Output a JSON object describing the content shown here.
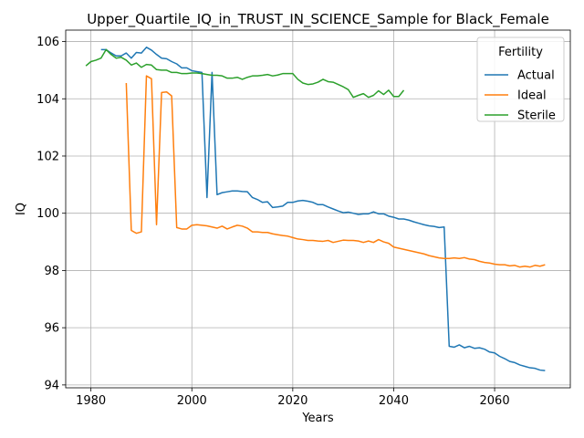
{
  "chart_data": {
    "type": "line",
    "title": "Upper_Quartile_IQ_in_TRUST_IN_SCIENCE_Sample for Black_Female",
    "xlabel": "Years",
    "ylabel": "IQ",
    "xlim": [
      1975,
      2075
    ],
    "ylim": [
      93.9,
      106.4
    ],
    "xticks": [
      1980,
      2000,
      2020,
      2040,
      2060
    ],
    "yticks": [
      94,
      96,
      98,
      100,
      102,
      104,
      106
    ],
    "grid": true,
    "legend": {
      "title": "Fertility",
      "placement": "top-right"
    },
    "series": [
      {
        "name": "Actual",
        "color": "#1f77b4",
        "x": [
          1982,
          1983,
          1984,
          1985,
          1986,
          1987,
          1988,
          1989,
          1990,
          1991,
          1992,
          1993,
          1994,
          1995,
          1996,
          1997,
          1998,
          1999,
          2000,
          2001,
          2002,
          2003,
          2004,
          2005,
          2006,
          2007,
          2008,
          2009,
          2010,
          2011,
          2012,
          2013,
          2014,
          2015,
          2016,
          2017,
          2018,
          2019,
          2020,
          2021,
          2022,
          2023,
          2024,
          2025,
          2026,
          2027,
          2028,
          2029,
          2030,
          2031,
          2032,
          2033,
          2034,
          2035,
          2036,
          2037,
          2038,
          2039,
          2040,
          2041,
          2042,
          2043,
          2044,
          2045,
          2046,
          2047,
          2048,
          2049,
          2050,
          2051,
          2052,
          2053,
          2054,
          2055,
          2056,
          2057,
          2058,
          2059,
          2060,
          2061,
          2062,
          2063,
          2064,
          2065,
          2066,
          2067,
          2068,
          2069,
          2070
        ],
        "y": [
          105.72,
          105.72,
          105.6,
          105.5,
          105.5,
          105.6,
          105.42,
          105.62,
          105.6,
          105.8,
          105.7,
          105.55,
          105.42,
          105.4,
          105.3,
          105.22,
          105.08,
          105.08,
          104.98,
          104.95,
          104.92,
          100.55,
          104.92,
          100.65,
          100.72,
          100.75,
          100.78,
          100.78,
          100.76,
          100.75,
          100.55,
          100.48,
          100.38,
          100.4,
          100.2,
          100.22,
          100.25,
          100.38,
          100.38,
          100.43,
          100.45,
          100.42,
          100.38,
          100.3,
          100.3,
          100.22,
          100.15,
          100.08,
          100.02,
          100.04,
          100.0,
          99.96,
          99.98,
          99.98,
          100.05,
          99.98,
          99.98,
          99.9,
          99.86,
          99.8,
          99.8,
          99.76,
          99.7,
          99.65,
          99.6,
          99.56,
          99.54,
          99.5,
          99.52,
          95.35,
          95.32,
          95.4,
          95.3,
          95.35,
          95.28,
          95.3,
          95.25,
          95.15,
          95.12,
          95.0,
          94.92,
          94.82,
          94.78,
          94.7,
          94.65,
          94.6,
          94.58,
          94.52,
          94.5
        ]
      },
      {
        "name": "Ideal",
        "color": "#ff7f0e",
        "x": [
          1987,
          1988,
          1989,
          1990,
          1991,
          1992,
          1993,
          1994,
          1995,
          1996,
          1997,
          1998,
          1999,
          2000,
          2001,
          2002,
          2003,
          2004,
          2005,
          2006,
          2007,
          2008,
          2009,
          2010,
          2011,
          2012,
          2013,
          2014,
          2015,
          2016,
          2017,
          2018,
          2019,
          2020,
          2021,
          2022,
          2023,
          2024,
          2025,
          2026,
          2027,
          2028,
          2029,
          2030,
          2031,
          2032,
          2033,
          2034,
          2035,
          2036,
          2037,
          2038,
          2039,
          2040,
          2041,
          2042,
          2043,
          2044,
          2045,
          2046,
          2047,
          2048,
          2049,
          2050,
          2051,
          2052,
          2053,
          2054,
          2055,
          2056,
          2057,
          2058,
          2059,
          2060,
          2061,
          2062,
          2063,
          2064,
          2065,
          2066,
          2067,
          2068,
          2069,
          2070
        ],
        "y": [
          104.55,
          99.4,
          99.3,
          99.35,
          104.8,
          104.7,
          99.6,
          104.22,
          104.24,
          104.1,
          99.5,
          99.45,
          99.45,
          99.58,
          99.6,
          99.58,
          99.56,
          99.52,
          99.48,
          99.55,
          99.45,
          99.52,
          99.58,
          99.55,
          99.48,
          99.35,
          99.35,
          99.33,
          99.33,
          99.28,
          99.25,
          99.22,
          99.2,
          99.15,
          99.1,
          99.08,
          99.05,
          99.05,
          99.03,
          99.02,
          99.05,
          98.98,
          99.02,
          99.06,
          99.05,
          99.05,
          99.03,
          98.98,
          99.03,
          98.98,
          99.08,
          99.0,
          98.95,
          98.82,
          98.78,
          98.74,
          98.7,
          98.66,
          98.62,
          98.58,
          98.52,
          98.48,
          98.44,
          98.42,
          98.42,
          98.44,
          98.42,
          98.45,
          98.4,
          98.38,
          98.32,
          98.28,
          98.26,
          98.22,
          98.2,
          98.2,
          98.16,
          98.18,
          98.12,
          98.15,
          98.12,
          98.18,
          98.15,
          98.2
        ]
      },
      {
        "name": "Sterile",
        "color": "#2ca02c",
        "x": [
          1979,
          1980,
          1981,
          1982,
          1983,
          1984,
          1985,
          1986,
          1987,
          1988,
          1989,
          1990,
          1991,
          1992,
          1993,
          1994,
          1995,
          1996,
          1997,
          1998,
          1999,
          2000,
          2001,
          2002,
          2003,
          2004,
          2005,
          2006,
          2007,
          2008,
          2009,
          2010,
          2011,
          2012,
          2013,
          2014,
          2015,
          2016,
          2017,
          2018,
          2019,
          2020,
          2021,
          2022,
          2023,
          2024,
          2025,
          2026,
          2027,
          2028,
          2029,
          2030,
          2031,
          2032,
          2033,
          2034,
          2035,
          2036,
          2037,
          2038,
          2039,
          2040,
          2041,
          2042
        ],
        "y": [
          105.15,
          105.3,
          105.35,
          105.42,
          105.72,
          105.55,
          105.42,
          105.45,
          105.35,
          105.18,
          105.25,
          105.1,
          105.2,
          105.18,
          105.02,
          105.0,
          105.0,
          104.92,
          104.92,
          104.88,
          104.88,
          104.9,
          104.9,
          104.88,
          104.85,
          104.82,
          104.82,
          104.8,
          104.72,
          104.72,
          104.75,
          104.68,
          104.75,
          104.8,
          104.8,
          104.82,
          104.85,
          104.8,
          104.83,
          104.88,
          104.88,
          104.88,
          104.68,
          104.55,
          104.5,
          104.52,
          104.58,
          104.68,
          104.6,
          104.58,
          104.5,
          104.42,
          104.32,
          104.05,
          104.12,
          104.18,
          104.05,
          104.12,
          104.28,
          104.15,
          104.3,
          104.08,
          104.08,
          104.3
        ]
      }
    ]
  }
}
